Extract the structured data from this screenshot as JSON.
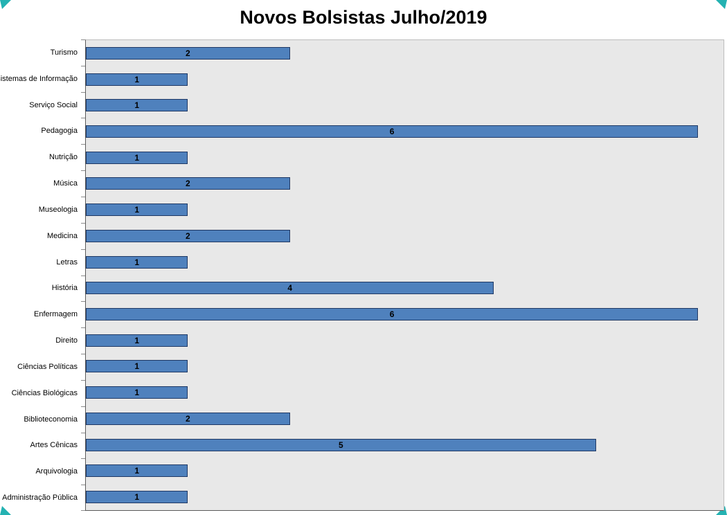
{
  "title": "Novos Bolsistas Julho/2019",
  "colors": {
    "corner_accent": "#24b2b2",
    "bar_fill": "#4f81bd",
    "bar_border": "#1f3864",
    "plot_background": "#e8e8e8",
    "plot_border": "#bdbdbd",
    "axis_line": "#5a5a5a"
  },
  "chart_data": {
    "type": "bar",
    "orientation": "horizontal",
    "title": "Novos Bolsistas Julho/2019",
    "categories": [
      "Turismo",
      "Sistemas de Informação",
      "Serviço Social",
      "Pedagogia",
      "Nutrição",
      "Música",
      "Museologia",
      "Medicina",
      "Letras",
      "História",
      "Enfermagem",
      "Direito",
      "Ciências Políticas",
      "Ciências Biológicas",
      "Biblioteconomia",
      "Artes Cênicas",
      "Arquivologia",
      "Administração Pública"
    ],
    "values": [
      2,
      1,
      1,
      6,
      1,
      2,
      1,
      2,
      1,
      4,
      6,
      1,
      1,
      1,
      2,
      5,
      1,
      1
    ],
    "xlabel": "",
    "ylabel": "",
    "xlim": [
      0,
      6.25
    ],
    "grid": false,
    "legend": "none",
    "data_labels": "centered-on-bar"
  }
}
